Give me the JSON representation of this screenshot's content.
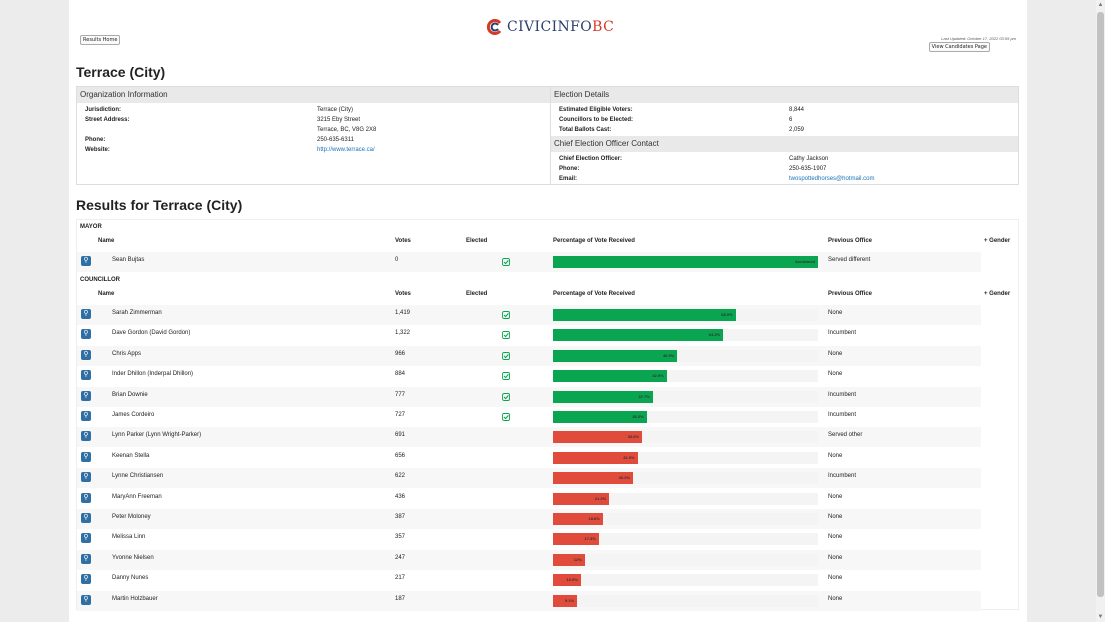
{
  "brand": {
    "name_part1": "CIVICINFO",
    "name_part2": "BC",
    "accent": "#d43a2a",
    "navy": "#2a3f6b"
  },
  "header": {
    "results_home": "Results Home",
    "last_updated": "Last Updated: October 17, 2022 03:55 pm",
    "view_candidates": "View Candidates Page"
  },
  "page_title": "Terrace (City)",
  "org_info": {
    "heading": "Organization Information",
    "jurisdiction_label": "Jurisdiction:",
    "jurisdiction": "Terrace (City)",
    "street_label": "Street Address:",
    "street_line1": "3215 Eby Street",
    "street_line2": "Terrace, BC, V8G 2X8",
    "phone_label": "Phone:",
    "phone": "250-635-6311",
    "website_label": "Website:",
    "website": "http://www.terrace.ca/"
  },
  "election_details": {
    "heading": "Election Details",
    "voters_label": "Estimated Eligible Voters:",
    "voters": "8,844",
    "councillors_label": "Councillors to be Elected:",
    "councillors": "6",
    "ballots_label": "Total Ballots Cast:",
    "ballots": "2,059"
  },
  "ceo_contact": {
    "heading": "Chief Election Officer Contact",
    "officer_label": "Chief Election Officer:",
    "officer": "Cathy Jackson",
    "phone_label": "Phone:",
    "phone": "250-635-1907",
    "email_label": "Email:",
    "email": "twospottedhorses@hotmail.com"
  },
  "results_title": "Results for Terrace (City)",
  "columns": {
    "name": "Name",
    "votes": "Votes",
    "elected": "Elected",
    "percentage": "Percentage of Vote Received",
    "previous": "Previous Office",
    "gender": "+ Gender"
  },
  "mayor": {
    "label": "MAYOR",
    "rows": [
      {
        "name": "Sean Bujtas",
        "votes": "0",
        "elected": true,
        "pct": 100,
        "pct_label": "Acclaimed",
        "previous": "Served different"
      }
    ]
  },
  "councillor": {
    "label": "COUNCILLOR",
    "rows": [
      {
        "name": "Sarah Zimmerman",
        "votes": "1,419",
        "elected": true,
        "pct": 68.9,
        "pct_label": "68.9%",
        "previous": "None"
      },
      {
        "name": "Dave Gordon (David Gordon)",
        "votes": "1,322",
        "elected": true,
        "pct": 64.2,
        "pct_label": "64.2%",
        "previous": "Incumbent"
      },
      {
        "name": "Chris Apps",
        "votes": "966",
        "elected": true,
        "pct": 46.9,
        "pct_label": "46.9%",
        "previous": "None"
      },
      {
        "name": "Inder Dhillon (Inderpal Dhillon)",
        "votes": "884",
        "elected": true,
        "pct": 42.9,
        "pct_label": "42.9%",
        "previous": "None"
      },
      {
        "name": "Brian Downie",
        "votes": "777",
        "elected": true,
        "pct": 37.7,
        "pct_label": "37.7%",
        "previous": "Incumbent"
      },
      {
        "name": "James Cordeiro",
        "votes": "727",
        "elected": true,
        "pct": 35.3,
        "pct_label": "35.3%",
        "previous": "Incumbent"
      },
      {
        "name": "Lynn Parker (Lynn Wright-Parker)",
        "votes": "691",
        "elected": false,
        "pct": 33.6,
        "pct_label": "33.6%",
        "previous": "Served other"
      },
      {
        "name": "Keenan Stella",
        "votes": "656",
        "elected": false,
        "pct": 31.9,
        "pct_label": "31.9%",
        "previous": "None"
      },
      {
        "name": "Lynne Christiansen",
        "votes": "622",
        "elected": false,
        "pct": 30.2,
        "pct_label": "30.2%",
        "previous": "Incumbent"
      },
      {
        "name": "MaryAnn Freeman",
        "votes": "436",
        "elected": false,
        "pct": 21.2,
        "pct_label": "21.2%",
        "previous": "None"
      },
      {
        "name": "Peter Moloney",
        "votes": "387",
        "elected": false,
        "pct": 18.8,
        "pct_label": "18.8%",
        "previous": "None"
      },
      {
        "name": "Melissa Linn",
        "votes": "357",
        "elected": false,
        "pct": 17.3,
        "pct_label": "17.3%",
        "previous": "None"
      },
      {
        "name": "Yvonne Nielsen",
        "votes": "247",
        "elected": false,
        "pct": 12,
        "pct_label": "12%",
        "previous": "None"
      },
      {
        "name": "Danny Nunes",
        "votes": "217",
        "elected": false,
        "pct": 10.5,
        "pct_label": "10.5%",
        "previous": "None"
      },
      {
        "name": "Martin Holzbauer",
        "votes": "187",
        "elected": false,
        "pct": 9.1,
        "pct_label": "9.1%",
        "previous": "None"
      }
    ]
  },
  "colors": {
    "elected_bar": "#0aa551",
    "not_elected_bar": "#e14b3b",
    "link": "#1a73b8"
  },
  "icons": {
    "details": "magnifier-icon",
    "elected": "checkmark-icon"
  }
}
